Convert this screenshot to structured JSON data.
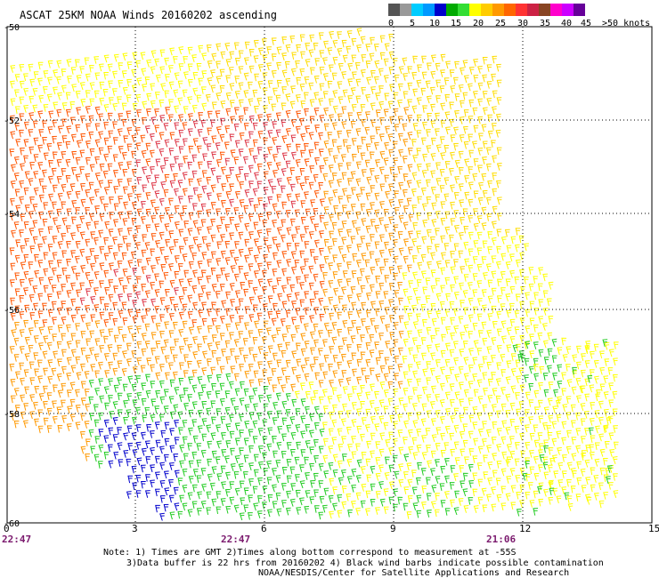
{
  "title": "ASCAT 25KM NOAA Winds 20160202 ascending",
  "legend": {
    "colors": [
      "#555555",
      "#999999",
      "#00ccff",
      "#0099ff",
      "#0000cc",
      "#00aa00",
      "#33dd33",
      "#ffff00",
      "#ffcc00",
      "#ff9900",
      "#ff6600",
      "#ff3333",
      "#cc2244",
      "#884422",
      "#ff00cc",
      "#cc00ff",
      "#660099"
    ],
    "labels": [
      "0",
      "5",
      "10",
      "15",
      "20",
      "25",
      "30",
      "35",
      "40",
      "45",
      ">50 knots"
    ]
  },
  "map": {
    "lat_labels": [
      "-50",
      "-52",
      "-54",
      "-56",
      "-58",
      "-60"
    ],
    "lon_labels": [
      "0",
      "3",
      "6",
      "9",
      "12",
      "15"
    ],
    "time_labels": [
      "22:47",
      "22:47",
      "21:06"
    ],
    "barb_groups": [
      {
        "speed": 25,
        "color": "#ffdd00"
      },
      {
        "speed": 30,
        "color": "#ff9900"
      },
      {
        "speed": 35,
        "color": "#ff5500"
      },
      {
        "speed": 40,
        "color": "#dd3344"
      },
      {
        "speed": 20,
        "color": "#ffff00"
      },
      {
        "speed": 15,
        "color": "#22cc22"
      },
      {
        "speed": 10,
        "color": "#0000cc"
      }
    ]
  },
  "notes": {
    "line1": "Note: 1) Times are GMT 2)Times along bottom correspond to measurement at -55S",
    "line2": "3)Data buffer is 22 hrs from 20160202 4) Black wind barbs indicate possible contamination",
    "line3": "NOAA/NESDIS/Center for Satellite Applications and Research"
  }
}
